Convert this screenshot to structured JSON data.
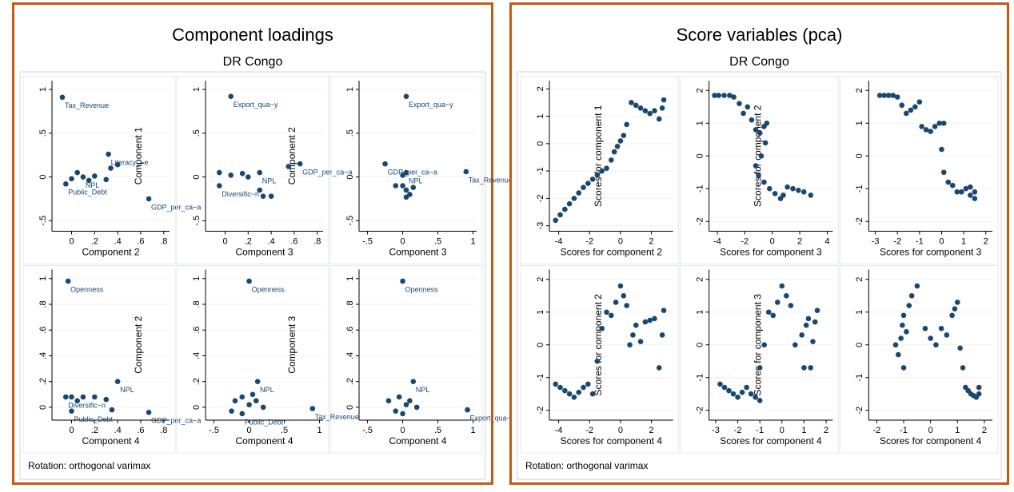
{
  "chart_data": [
    {
      "type": "scatter",
      "title": "Component loadings",
      "subtitle": "DR Congo",
      "note": "Rotation: orthogonal varimax",
      "color": "#1a476f",
      "grid": true,
      "plots": [
        {
          "xlabel": "Component 2",
          "ylabel": "Component 1",
          "xlim": [
            -0.17,
            0.85
          ],
          "ylim": [
            -0.62,
            1.1
          ],
          "xticks": [
            0,
            {
              "value": 0.2,
              "label": ".2"
            },
            {
              "value": 0.4,
              "label": ".4"
            },
            {
              "value": 0.6,
              "label": ".6"
            },
            {
              "value": 0.8,
              "label": ".8"
            }
          ],
          "yticks": [
            {
              "value": -0.5,
              "label": "-.5"
            },
            0,
            {
              "value": 0.5,
              "label": ".5"
            },
            1
          ],
          "x": [
            -0.08,
            0.32,
            0.34,
            0.4,
            0.05,
            0.0,
            0.1,
            0.2,
            0.3,
            -0.05,
            0.67,
            0.15
          ],
          "y": [
            0.91,
            0.26,
            0.1,
            0.14,
            0.05,
            -0.02,
            0.0,
            0.01,
            -0.03,
            -0.08,
            -0.25,
            -0.04
          ],
          "labels": [
            "Tax_Revenue",
            "Literacy_~e",
            null,
            null,
            null,
            null,
            "NPL",
            null,
            null,
            "Public_Debt",
            "GDP_per_ca~a",
            null
          ]
        },
        {
          "xlabel": "Component 3",
          "ylabel": "Component 2",
          "xlim": [
            -0.17,
            0.85
          ],
          "ylim": [
            -0.62,
            1.1
          ],
          "xticks": [
            0,
            {
              "value": 0.2,
              "label": ".2"
            },
            {
              "value": 0.4,
              "label": ".4"
            },
            {
              "value": 0.6,
              "label": ".6"
            },
            {
              "value": 0.8,
              "label": ".8"
            }
          ],
          "yticks": [
            {
              "value": -0.5,
              "label": "-.5"
            },
            0,
            {
              "value": 0.5,
              "label": ".5"
            },
            1
          ],
          "x": [
            0.05,
            0.65,
            0.55,
            -0.05,
            -0.05,
            0.05,
            0.15,
            0.3,
            0.3,
            0.33,
            0.4,
            0.2
          ],
          "y": [
            0.92,
            0.15,
            0.12,
            0.05,
            -0.1,
            0.02,
            0.04,
            0.05,
            -0.15,
            -0.22,
            -0.22,
            0.0
          ],
          "labels": [
            "Export_qua~y",
            "GDP_per_ca~a",
            null,
            null,
            "Diversific~n",
            null,
            null,
            "NPL",
            null,
            null,
            null,
            null
          ]
        },
        {
          "xlabel": "Component 3",
          "xlim": [
            -0.62,
            1.05
          ],
          "ylim": [
            -0.62,
            1.1
          ],
          "xticks": [
            {
              "value": -0.5,
              "label": "-.5"
            },
            0,
            {
              "value": 0.5,
              "label": ".5"
            },
            1
          ],
          "yticks": [
            {
              "value": -0.5,
              "label": "-.5"
            },
            0,
            {
              "value": 0.5,
              "label": ".5"
            },
            1
          ],
          "x": [
            0.05,
            -0.25,
            0.05,
            0.9,
            0.0,
            0.05,
            -0.1,
            0.1,
            0.15,
            0.0,
            0.05
          ],
          "y": [
            0.92,
            0.15,
            0.05,
            0.06,
            -0.1,
            -0.15,
            -0.1,
            -0.2,
            -0.12,
            0.02,
            -0.23
          ],
          "labels": [
            "Export_qua~y",
            "GDP_per_ca~a",
            "NPL",
            "Tax_Revenue",
            null,
            null,
            null,
            null,
            null,
            null,
            null
          ]
        },
        {
          "xlabel": "Component 4",
          "ylabel": "Component 2",
          "xlim": [
            -0.17,
            0.85
          ],
          "ylim": [
            -0.1,
            1.07
          ],
          "xticks": [
            0,
            {
              "value": 0.2,
              "label": ".2"
            },
            {
              "value": 0.4,
              "label": ".4"
            },
            {
              "value": 0.6,
              "label": ".6"
            },
            {
              "value": 0.8,
              "label": ".8"
            }
          ],
          "yticks": [
            0,
            {
              "value": 0.2,
              "label": ".2"
            },
            {
              "value": 0.4,
              "label": ".4"
            },
            {
              "value": 0.6,
              "label": ".6"
            },
            {
              "value": 0.8,
              "label": ".8"
            },
            1
          ],
          "x": [
            -0.03,
            0.4,
            0.67,
            0.0,
            0.0,
            0.1,
            0.2,
            0.3,
            0.35,
            0.05,
            -0.05
          ],
          "y": [
            0.98,
            0.2,
            -0.04,
            -0.03,
            0.08,
            0.08,
            0.08,
            0.06,
            -0.02,
            0.05,
            0.08
          ],
          "labels": [
            "Openness",
            "NPL",
            "GDP_per_ca~a",
            "Public_Debt",
            null,
            null,
            null,
            null,
            null,
            null,
            "Diversific~n"
          ]
        },
        {
          "xlabel": "Component 4",
          "ylabel": "Component 3",
          "xlim": [
            -0.62,
            1.05
          ],
          "ylim": [
            -0.1,
            1.07
          ],
          "xticks": [
            {
              "value": -0.5,
              "label": "-.5"
            },
            0,
            {
              "value": 0.5,
              "label": ".5"
            },
            1
          ],
          "yticks": [
            0,
            {
              "value": 0.2,
              "label": ".2"
            },
            {
              "value": 0.4,
              "label": ".4"
            },
            {
              "value": 0.6,
              "label": ".6"
            },
            {
              "value": 0.8,
              "label": ".8"
            },
            1
          ],
          "x": [
            0.0,
            0.12,
            0.9,
            -0.1,
            -0.2,
            -0.1,
            0.0,
            0.1,
            0.2,
            -0.25,
            0.05
          ],
          "y": [
            0.98,
            0.2,
            -0.01,
            -0.05,
            0.05,
            0.08,
            0.02,
            0.05,
            0.0,
            -0.03,
            0.1
          ],
          "labels": [
            "Openness",
            "NPL",
            "Tax_Revenue",
            "Public_Debt",
            null,
            null,
            null,
            null,
            null,
            null,
            null
          ]
        },
        {
          "xlabel": "Component 4",
          "xlim": [
            -0.62,
            1.05
          ],
          "ylim": [
            -0.1,
            1.07
          ],
          "xticks": [
            {
              "value": -0.5,
              "label": "-.5"
            },
            0,
            {
              "value": 0.5,
              "label": ".5"
            },
            1
          ],
          "yticks": [
            0,
            {
              "value": 0.2,
              "label": ".2"
            },
            {
              "value": 0.4,
              "label": ".4"
            },
            {
              "value": 0.6,
              "label": ".6"
            },
            {
              "value": 0.8,
              "label": ".8"
            },
            1
          ],
          "x": [
            0.0,
            0.15,
            0.92,
            -0.1,
            -0.2,
            -0.05,
            0.05,
            0.1,
            0.2,
            0.0
          ],
          "y": [
            0.98,
            0.2,
            -0.02,
            -0.03,
            0.05,
            0.08,
            0.02,
            0.05,
            0.0,
            -0.05
          ],
          "labels": [
            "Openness",
            "NPL",
            "Export_qua~y",
            null,
            null,
            null,
            null,
            null,
            null,
            null
          ]
        }
      ]
    },
    {
      "type": "scatter",
      "title": "Score variables (pca)",
      "subtitle": "DR Congo",
      "note": "Rotation: orthogonal varimax",
      "color": "#1a476f",
      "grid": true,
      "plots": [
        {
          "xlabel": "Scores for component 2",
          "ylabel": "Scores for component 1",
          "xlim": [
            -4.6,
            3.4
          ],
          "ylim": [
            -3.2,
            2.3
          ],
          "xticks": [
            -4,
            -2,
            0,
            2
          ],
          "yticks": [
            -3,
            -2,
            -1,
            0,
            1,
            2
          ],
          "x": [
            -4.2,
            -3.9,
            -3.6,
            -3.3,
            -3,
            -2.7,
            -2.4,
            -2.1,
            -1.8,
            -1.5,
            -1.2,
            -0.9,
            -0.6,
            -0.4,
            -0.2,
            0,
            0.2,
            0.4,
            0.7,
            1,
            1.3,
            1.6,
            1.9,
            2.2,
            2.5,
            2.7,
            2.8
          ],
          "y": [
            -2.8,
            -2.6,
            -2.4,
            -2.2,
            -2.0,
            -1.8,
            -1.6,
            -1.45,
            -1.3,
            -1.15,
            -1.0,
            -0.9,
            -0.6,
            -0.3,
            -0.1,
            0.1,
            0.3,
            0.7,
            1.5,
            1.4,
            1.3,
            1.2,
            1.1,
            1.2,
            0.9,
            1.3,
            1.6
          ]
        },
        {
          "xlabel": "Scores for component 3",
          "ylabel": "Scores for component 2",
          "xlim": [
            -4.6,
            4.4
          ],
          "ylim": [
            -2.3,
            2.3
          ],
          "xticks": [
            -4,
            -2,
            0,
            2,
            4
          ],
          "yticks": [
            -2,
            -1,
            0,
            1,
            2
          ],
          "x": [
            -4.2,
            -3.9,
            -3.5,
            -3.1,
            -2.8,
            -2.4,
            -2.1,
            -1.8,
            -1.5,
            -1.2,
            -0.9,
            -0.6,
            -0.4,
            -0.5,
            -0.8,
            -1.2,
            -1.0,
            -0.6,
            -0.2,
            0.2,
            0.6,
            0.8,
            1.1,
            1.5,
            1.9,
            2.3,
            2.8
          ],
          "y": [
            1.85,
            1.85,
            1.85,
            1.85,
            1.8,
            1.6,
            1.3,
            1.5,
            1.1,
            0.8,
            0.7,
            0.9,
            1.0,
            0.4,
            0.0,
            -0.3,
            -0.6,
            -0.8,
            -1.0,
            -1.15,
            -1.3,
            -1.2,
            -0.95,
            -1.0,
            -1.05,
            -1.1,
            -1.2
          ]
        },
        {
          "xlabel": "Scores for component 3",
          "xlim": [
            -3.3,
            2.3
          ],
          "ylim": [
            -2.3,
            2.3
          ],
          "xticks": [
            -3,
            -2,
            -1,
            0,
            1,
            2
          ],
          "yticks": [
            -2,
            -1,
            0,
            1,
            2
          ],
          "x": [
            -2.8,
            -2.6,
            -2.4,
            -2.2,
            -2.0,
            -1.8,
            -1.6,
            -1.4,
            -1.2,
            -1.0,
            -0.9,
            -0.7,
            -0.5,
            -0.3,
            -0.1,
            0.1,
            0.0,
            0.1,
            0.3,
            0.5,
            0.7,
            0.9,
            1.1,
            1.3,
            1.3,
            1.5,
            1.5
          ],
          "y": [
            1.85,
            1.85,
            1.85,
            1.85,
            1.8,
            1.55,
            1.3,
            1.4,
            1.5,
            1.65,
            0.9,
            0.8,
            0.75,
            0.9,
            1.0,
            1.0,
            0.2,
            -0.5,
            -0.8,
            -0.9,
            -1.1,
            -1.1,
            -1.0,
            -0.95,
            -1.2,
            -1.3,
            -1.1
          ]
        },
        {
          "xlabel": "Scores for component 4",
          "ylabel": "Scores for component 2",
          "xlim": [
            -4.6,
            3.4
          ],
          "ylim": [
            -2.3,
            2.3
          ],
          "xticks": [
            -4,
            -2,
            0,
            2
          ],
          "yticks": [
            -2,
            -1,
            0,
            1,
            2
          ],
          "x": [
            -4.2,
            -3.9,
            -3.6,
            -3.3,
            -3,
            -2.7,
            -2.4,
            -2.1,
            -1.8,
            -1.5,
            -1.2,
            -0.9,
            -0.6,
            -0.3,
            0,
            0.2,
            0.4,
            0.6,
            0.8,
            1.0,
            1.3,
            1.6,
            1.9,
            2.2,
            2.5,
            2.7,
            2.8
          ],
          "y": [
            -1.2,
            -1.3,
            -1.4,
            -1.5,
            -1.6,
            -1.45,
            -1.3,
            -1.2,
            -1.5,
            -0.5,
            0.5,
            1.0,
            0.9,
            1.3,
            1.8,
            1.5,
            1.2,
            0.0,
            0.3,
            0.6,
            0.1,
            0.7,
            0.75,
            0.8,
            -0.7,
            0.3,
            1.05
          ]
        },
        {
          "xlabel": "Scores for component 4",
          "ylabel": "Scores for component 3",
          "xlim": [
            -3.3,
            2.3
          ],
          "ylim": [
            -2.3,
            2.3
          ],
          "xticks": [
            -3,
            -2,
            -1,
            0,
            1,
            2
          ],
          "yticks": [
            -2,
            -1,
            0,
            1,
            2
          ],
          "x": [
            -2.8,
            -2.6,
            -2.4,
            -2.2,
            -2.0,
            -1.8,
            -1.6,
            -1.4,
            -1.2,
            -1.0,
            -1.0,
            -0.8,
            -0.6,
            -0.4,
            -0.2,
            0,
            0.2,
            0.4,
            0.6,
            0.9,
            1.0,
            1.1,
            1.2,
            1.3,
            1.4,
            1.5,
            1.6
          ],
          "y": [
            -1.2,
            -1.3,
            -1.4,
            -1.5,
            -1.6,
            -1.45,
            -1.3,
            -1.5,
            -1.6,
            -1.7,
            -0.7,
            0.0,
            1.0,
            0.9,
            1.3,
            1.8,
            1.5,
            1.2,
            0.0,
            0.3,
            -0.7,
            0.6,
            0.8,
            -0.7,
            0.1,
            0.7,
            1.05
          ]
        },
        {
          "xlabel": "Scores for component 4",
          "xlim": [
            -2.3,
            2.3
          ],
          "ylim": [
            -2.3,
            2.3
          ],
          "xticks": [
            -2,
            -1,
            0,
            1,
            2
          ],
          "yticks": [
            -2,
            -1,
            0,
            1,
            2
          ],
          "x": [
            -1.3,
            -1.2,
            -1.1,
            -1.05,
            -1.0,
            -1.0,
            -0.9,
            -0.8,
            -0.7,
            -0.5,
            -0.2,
            0.0,
            0.2,
            0.4,
            0.6,
            0.8,
            0.9,
            1.0,
            1.1,
            1.2,
            1.3,
            1.4,
            1.5,
            1.6,
            1.7,
            1.8,
            1.8
          ],
          "y": [
            0.0,
            -0.3,
            0.2,
            0.6,
            0.9,
            -0.7,
            0.4,
            1.2,
            1.5,
            1.8,
            0.5,
            0.2,
            0.0,
            0.5,
            0.3,
            0.9,
            1.1,
            1.3,
            -0.1,
            -0.7,
            -1.3,
            -1.4,
            -1.5,
            -1.55,
            -1.6,
            -1.5,
            -1.3
          ]
        }
      ]
    }
  ]
}
